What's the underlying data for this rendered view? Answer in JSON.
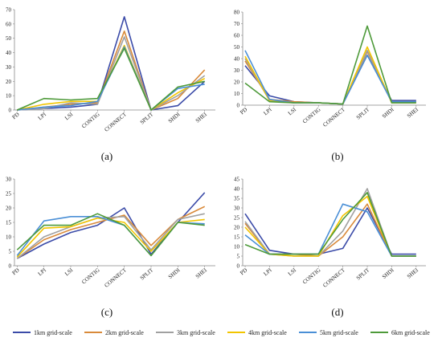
{
  "legend": {
    "entries": [
      "1km grid-scale",
      "2km grid-scale",
      "3km grid-scale",
      "4km grid-scale",
      "5km grid-scale",
      "6km grid-scale"
    ],
    "colors": [
      "#3b4ba8",
      "#d98a3a",
      "#a0a0a0",
      "#f2c500",
      "#4a8fd6",
      "#4e9a3a"
    ]
  },
  "chart_data": [
    {
      "type": "line",
      "panel_label": "(a)",
      "categories": [
        "PD",
        "LPI",
        "LSI",
        "CONTIG",
        "CONNECT",
        "SPLIT",
        "SHDI",
        "SHEI"
      ],
      "ylim": [
        0,
        70
      ],
      "yticks": [
        0,
        10,
        20,
        30,
        40,
        50,
        60,
        70
      ],
      "series": [
        {
          "name": "1km grid-scale",
          "values": [
            0,
            1,
            2,
            4,
            65,
            0,
            3,
            20
          ]
        },
        {
          "name": "2km grid-scale",
          "values": [
            0,
            2,
            4,
            5,
            55,
            0,
            8,
            28
          ]
        },
        {
          "name": "3km grid-scale",
          "values": [
            0,
            1,
            5,
            4,
            51,
            0,
            10,
            24
          ]
        },
        {
          "name": "4km grid-scale",
          "values": [
            0,
            4,
            6,
            6,
            45,
            0,
            12,
            22
          ]
        },
        {
          "name": "5km grid-scale",
          "values": [
            0,
            2,
            3,
            6,
            44,
            0,
            15,
            18
          ]
        },
        {
          "name": "6km grid-scale",
          "values": [
            0,
            8,
            7,
            8,
            43,
            0,
            16,
            20
          ]
        }
      ]
    },
    {
      "type": "line",
      "panel_label": "(b)",
      "categories": [
        "PD",
        "LPI",
        "LSI",
        "CONTIG",
        "CONNECT",
        "SPLIT",
        "SHDI",
        "SHEI"
      ],
      "ylim": [
        0,
        80
      ],
      "yticks": [
        0,
        10,
        20,
        30,
        40,
        50,
        60,
        70,
        80
      ],
      "series": [
        {
          "name": "1km grid-scale",
          "values": [
            34,
            8,
            3,
            2,
            1,
            43,
            4,
            4
          ]
        },
        {
          "name": "2km grid-scale",
          "values": [
            38,
            5,
            3,
            2,
            1,
            46,
            3,
            3
          ]
        },
        {
          "name": "3km grid-scale",
          "values": [
            40,
            4,
            2,
            2,
            1,
            47,
            3,
            3
          ]
        },
        {
          "name": "4km grid-scale",
          "values": [
            42,
            4,
            2,
            2,
            1,
            50,
            2,
            2
          ]
        },
        {
          "name": "5km grid-scale",
          "values": [
            47,
            5,
            2,
            2,
            1,
            43,
            3,
            3
          ]
        },
        {
          "name": "6km grid-scale",
          "values": [
            19,
            3,
            2,
            2,
            1,
            68,
            2,
            2
          ]
        }
      ]
    },
    {
      "type": "line",
      "panel_label": "(c)",
      "categories": [
        "PD",
        "LPI",
        "LSI",
        "CONTIG",
        "CONNECT",
        "SPLIT",
        "SHDI",
        "SHEI"
      ],
      "ylim": [
        0,
        30
      ],
      "yticks": [
        0,
        5,
        10,
        15,
        20,
        25,
        30
      ],
      "series": [
        {
          "name": "1km grid-scale",
          "values": [
            2.5,
            7.5,
            11.5,
            14,
            20,
            4,
            15,
            25.3
          ]
        },
        {
          "name": "2km grid-scale",
          "values": [
            2.5,
            9,
            12.5,
            15,
            17.5,
            7,
            16,
            20.5
          ]
        },
        {
          "name": "3km grid-scale",
          "values": [
            2.5,
            10,
            13.5,
            16.5,
            17,
            5.5,
            16,
            18
          ]
        },
        {
          "name": "4km grid-scale",
          "values": [
            3,
            13,
            13.5,
            16.5,
            15,
            5,
            15,
            16
          ]
        },
        {
          "name": "5km grid-scale",
          "values": [
            3.5,
            15.5,
            17,
            17,
            14,
            3.5,
            15,
            14.5
          ]
        },
        {
          "name": "6km grid-scale",
          "values": [
            5.5,
            14,
            14,
            18,
            14,
            3.5,
            15,
            14
          ]
        }
      ]
    },
    {
      "type": "line",
      "panel_label": "(d)",
      "categories": [
        "PD",
        "LPI",
        "LSI",
        "CONTIG",
        "CONNECT",
        "SPLIT",
        "SHDI",
        "SHEI"
      ],
      "ylim": [
        0,
        45
      ],
      "yticks": [
        0,
        5,
        10,
        15,
        20,
        25,
        30,
        35,
        40,
        45
      ],
      "series": [
        {
          "name": "1km grid-scale",
          "values": [
            27,
            8,
            6,
            6,
            9,
            30,
            6,
            6
          ]
        },
        {
          "name": "2km grid-scale",
          "values": [
            22,
            6,
            6,
            5,
            15,
            32,
            5,
            5
          ]
        },
        {
          "name": "3km grid-scale",
          "values": [
            23,
            6,
            5,
            5,
            18,
            40,
            5,
            5
          ]
        },
        {
          "name": "4km grid-scale",
          "values": [
            20,
            6,
            5,
            5,
            26,
            36,
            5,
            5
          ]
        },
        {
          "name": "5km grid-scale",
          "values": [
            16,
            6,
            6,
            6,
            32,
            28,
            5,
            5
          ]
        },
        {
          "name": "6km grid-scale",
          "values": [
            11,
            6,
            6,
            6,
            24,
            38,
            5,
            5
          ]
        }
      ]
    }
  ]
}
